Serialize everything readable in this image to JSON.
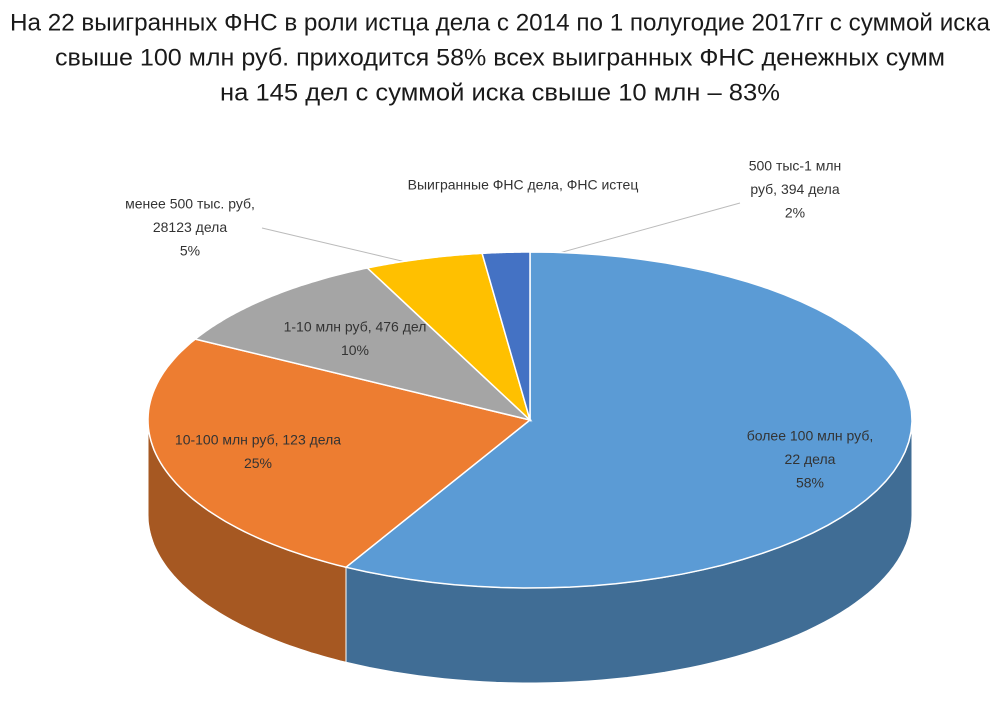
{
  "chart_data": {
    "type": "pie",
    "title": [
      "На 22 выигранных ФНС в роли истца дела с 2014 по 1 полугодие 2017гг с суммой иска",
      "свыше 100 млн руб. приходится 58% всех выигранных ФНС денежных сумм",
      "на 145 дел с суммой иска свыше 10 млн – 83%"
    ],
    "subtitle": "Выигранные ФНС дела, ФНС истец",
    "labels": [
      [
        "более 100 млн руб,",
        "22 дела"
      ],
      [
        "10-100 млн руб, 123 дела"
      ],
      [
        "1-10 млн руб, 476 дел"
      ],
      [
        "менее 500 тыс. руб,",
        "28123 дела"
      ],
      [
        "500 тыс-1 млн",
        "руб, 394 дела"
      ]
    ],
    "values": [
      58,
      25,
      10,
      5,
      2
    ],
    "value_labels": [
      "58%",
      "25%",
      "10%",
      "5%",
      "2%"
    ],
    "colors": [
      "#5b9bd5",
      "#ed7d31",
      "#a5a5a5",
      "#ffc000",
      "#4472c4"
    ]
  }
}
